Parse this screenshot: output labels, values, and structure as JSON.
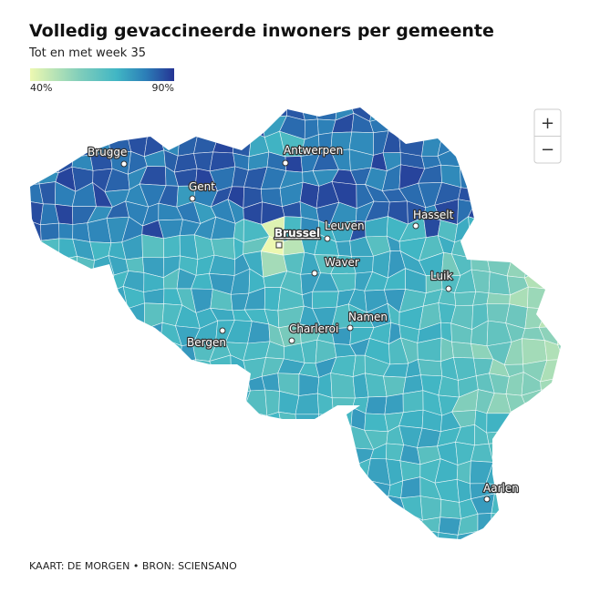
{
  "header": {
    "title": "Volledig gevaccineerde inwoners per gemeente",
    "subtitle": "Tot en met week 35"
  },
  "legend": {
    "min_label": "40%",
    "max_label": "90%"
  },
  "cities": [
    {
      "name": "Brugge"
    },
    {
      "name": "Antwerpen"
    },
    {
      "name": "Gent"
    },
    {
      "name": "Brussel"
    },
    {
      "name": "Leuven"
    },
    {
      "name": "Hasselt"
    },
    {
      "name": "Waver"
    },
    {
      "name": "Luik"
    },
    {
      "name": "Namen"
    },
    {
      "name": "Charleroi"
    },
    {
      "name": "Bergen"
    },
    {
      "name": "Aarlen"
    }
  ],
  "zoom": {
    "zoom_in": "+",
    "zoom_out": "−"
  },
  "footer": {
    "source": "KAART: DE MORGEN • BRON: SCIENSANO"
  }
}
